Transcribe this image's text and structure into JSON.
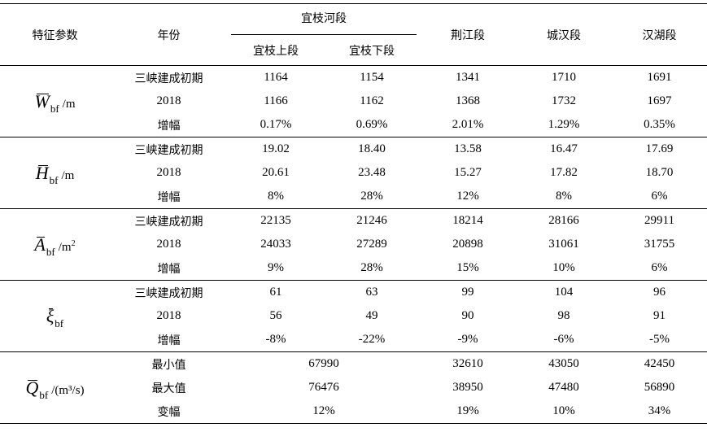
{
  "header": {
    "param": "特征参数",
    "year": "年份",
    "yichang_group": "宜枝河段",
    "yichang_upper": "宜枝上段",
    "yichang_lower": "宜枝下段",
    "jingjiang": "荆江段",
    "chenghan": "城汉段",
    "hanhu": "汉湖段"
  },
  "groups": [
    {
      "symbol": "W",
      "subscript": "bf",
      "unit": "/m",
      "unit_sup": "",
      "rows": [
        {
          "label": "三峡建成初期",
          "v": [
            "1164",
            "1154",
            "1341",
            "1710",
            "1691"
          ]
        },
        {
          "label": "2018",
          "v": [
            "1166",
            "1162",
            "1368",
            "1732",
            "1697"
          ]
        },
        {
          "label": "增幅",
          "v": [
            "0.17%",
            "0.69%",
            "2.01%",
            "1.29%",
            "0.35%"
          ]
        }
      ]
    },
    {
      "symbol": "H",
      "subscript": "bf",
      "unit": "/m",
      "unit_sup": "",
      "rows": [
        {
          "label": "三峡建成初期",
          "v": [
            "19.02",
            "18.40",
            "13.58",
            "16.47",
            "17.69"
          ]
        },
        {
          "label": "2018",
          "v": [
            "20.61",
            "23.48",
            "15.27",
            "17.82",
            "18.70"
          ]
        },
        {
          "label": "增幅",
          "v": [
            "8%",
            "28%",
            "12%",
            "8%",
            "6%"
          ]
        }
      ]
    },
    {
      "symbol": "A",
      "subscript": "bf",
      "unit": "/m",
      "unit_sup": "2",
      "rows": [
        {
          "label": "三峡建成初期",
          "v": [
            "22135",
            "21246",
            "18214",
            "28166",
            "29911"
          ]
        },
        {
          "label": "2018",
          "v": [
            "24033",
            "27289",
            "20898",
            "31061",
            "31755"
          ]
        },
        {
          "label": "增幅",
          "v": [
            "9%",
            "28%",
            "15%",
            "10%",
            "6%"
          ]
        }
      ]
    },
    {
      "symbol": "ξ",
      "subscript": "bf",
      "unit": "",
      "unit_sup": "",
      "rows": [
        {
          "label": "三峡建成初期",
          "v": [
            "61",
            "63",
            "99",
            "104",
            "96"
          ]
        },
        {
          "label": "2018",
          "v": [
            "56",
            "49",
            "90",
            "98",
            "91"
          ]
        },
        {
          "label": "增幅",
          "v": [
            "-8%",
            "-22%",
            "-9%",
            "-6%",
            "-5%"
          ]
        }
      ]
    },
    {
      "symbol": "Q",
      "subscript": "bf",
      "unit": "/(m³/s)",
      "unit_sup": "",
      "rows": [
        {
          "label": "最小值",
          "merged": "67990",
          "v": [
            "32610",
            "43050",
            "42450"
          ]
        },
        {
          "label": "最大值",
          "merged": "76476",
          "v": [
            "38950",
            "47480",
            "56890"
          ]
        },
        {
          "label": "变幅",
          "merged": "12%",
          "v": [
            "19%",
            "10%",
            "34%"
          ]
        }
      ]
    }
  ]
}
